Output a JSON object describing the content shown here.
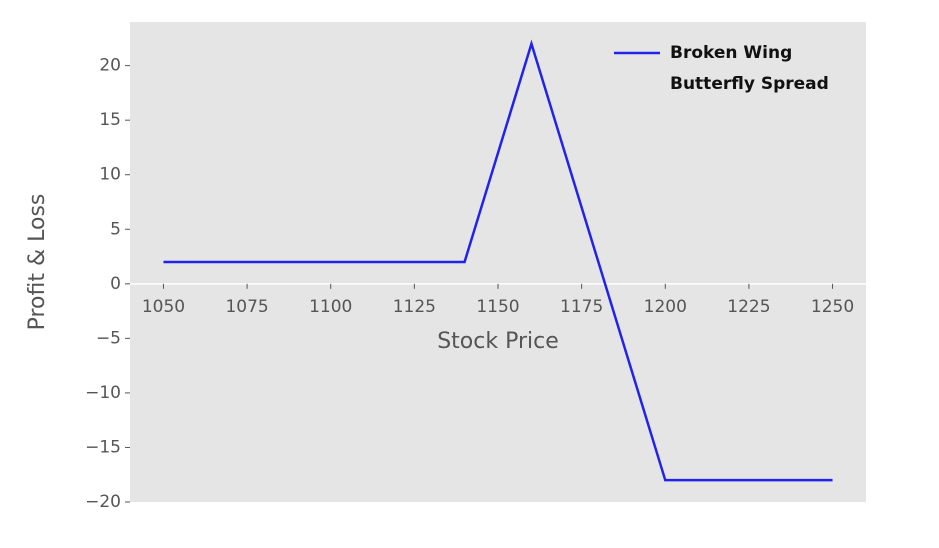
{
  "chart_data": {
    "type": "line",
    "xlabel": "Stock Price",
    "ylabel": "Profit & Loss",
    "x": [
      1050,
      1140,
      1160,
      1200,
      1250
    ],
    "series": [
      {
        "name": "Broken Wing Butterfly Spread",
        "color": "#2222ee",
        "values": [
          2,
          2,
          22,
          -18,
          -18
        ]
      }
    ],
    "xlim": [
      1040,
      1260
    ],
    "ylim": [
      -20,
      24
    ],
    "xticks": [
      1050,
      1075,
      1100,
      1125,
      1150,
      1175,
      1200,
      1225,
      1250
    ],
    "yticks": [
      {
        "value": -20,
        "label": "−20"
      },
      {
        "value": -15,
        "label": "−15"
      },
      {
        "value": -10,
        "label": "−10"
      },
      {
        "value": -5,
        "label": "−5"
      },
      0,
      5,
      10,
      15,
      20
    ],
    "grid": false,
    "legend": "upper right"
  }
}
